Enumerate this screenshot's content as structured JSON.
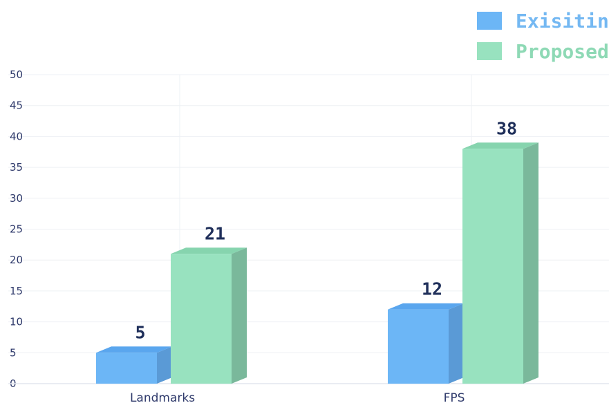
{
  "chart_data": {
    "type": "bar",
    "categories": [
      "Landmarks",
      "FPS"
    ],
    "series": [
      {
        "name": "Exisiting",
        "values": [
          5,
          12
        ],
        "color": "#6cb6f6",
        "side_color": "#5a9ad6",
        "top_color": "#5aa6ee",
        "legend_text_color": "#74b8f2"
      },
      {
        "name": "Proposed",
        "values": [
          21,
          38
        ],
        "color": "#98e2bf",
        "side_color": "#7ab89b",
        "top_color": "#86d4ae",
        "legend_text_color": "#8ed9b5"
      }
    ],
    "yticks": [
      0,
      5,
      10,
      15,
      20,
      25,
      30,
      35,
      40,
      45,
      50
    ],
    "ylim": [
      0,
      50
    ],
    "grid": true,
    "legend_position": "top-right",
    "title": "",
    "xlabel": "",
    "ylabel": ""
  }
}
